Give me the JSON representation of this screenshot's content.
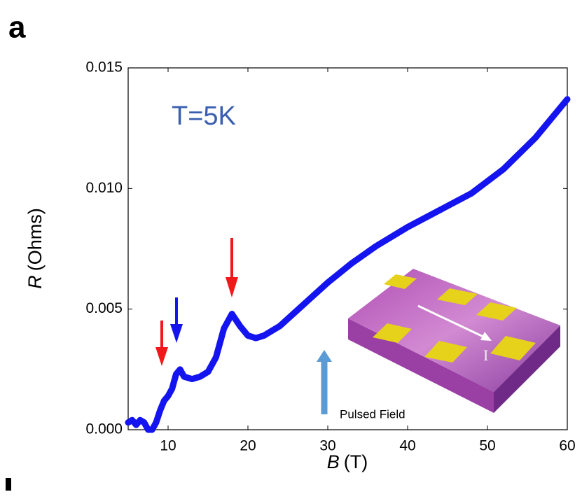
{
  "chart_data": {
    "type": "line",
    "panel_label": "a",
    "annotation": "T=5K",
    "xlabel": "B",
    "xlabel_unit": "(T)",
    "ylabel": "R",
    "ylabel_unit": "(Ohms)",
    "inset_field_label": "Pulsed Field",
    "inset_current_label": "I",
    "x": [
      5,
      5.5,
      6,
      6.5,
      7,
      7.5,
      8,
      8.5,
      9,
      9.5,
      10,
      10.5,
      11,
      11.5,
      12,
      13,
      14,
      15,
      16,
      17,
      18,
      19,
      20,
      21,
      22,
      24,
      26,
      28,
      30,
      33,
      36,
      40,
      44,
      48,
      52,
      56,
      60
    ],
    "series": [
      {
        "name": "R",
        "color": "#1414f0",
        "values": [
          0.0003,
          0.0004,
          0.0002,
          0.0004,
          0.0003,
          0.0,
          0.0,
          0.0003,
          0.0008,
          0.0012,
          0.0014,
          0.0017,
          0.0023,
          0.0025,
          0.0022,
          0.0021,
          0.0022,
          0.0024,
          0.003,
          0.0042,
          0.0048,
          0.0043,
          0.0039,
          0.0038,
          0.0039,
          0.0043,
          0.0049,
          0.0055,
          0.0061,
          0.0069,
          0.0076,
          0.0084,
          0.0091,
          0.0098,
          0.0108,
          0.0121,
          0.0137
        ]
      }
    ],
    "xlim": [
      5,
      60
    ],
    "xticks": [
      10,
      20,
      30,
      40,
      50,
      60
    ],
    "ylim": [
      0,
      0.015
    ],
    "yticks": [
      {
        "value": 0,
        "label": "0.000"
      },
      {
        "value": 0.005,
        "label": "0.005"
      },
      {
        "value": 0.01,
        "label": "0.010"
      },
      {
        "value": 0.015,
        "label": "0.015"
      }
    ]
  }
}
